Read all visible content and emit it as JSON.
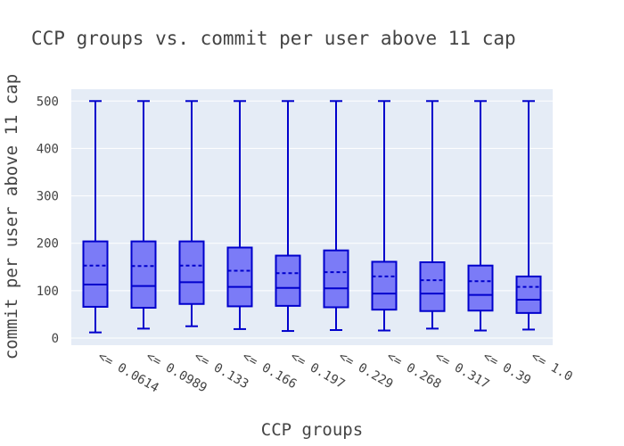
{
  "chart_data": {
    "type": "box",
    "title": "CCP groups vs. commit per user above 11 cap",
    "xlabel": "CCP groups",
    "ylabel": "commit per user above 11 cap",
    "ylim": [
      -15,
      525
    ],
    "yticks": [
      0,
      100,
      200,
      300,
      400,
      500
    ],
    "grid": true,
    "show_mean_line": true,
    "categories": [
      "<= 0.0614",
      "<= 0.0989",
      "<= 0.133",
      "<= 0.166",
      "<= 0.197",
      "<= 0.229",
      "<= 0.268",
      "<= 0.317",
      "<= 0.39",
      "<= 1.0"
    ],
    "boxes": [
      {
        "min": 12,
        "q1": 66,
        "median": 113,
        "q3": 204,
        "max": 500,
        "mean": 153
      },
      {
        "min": 20,
        "q1": 64,
        "median": 110,
        "q3": 204,
        "max": 500,
        "mean": 152
      },
      {
        "min": 25,
        "q1": 72,
        "median": 118,
        "q3": 204,
        "max": 500,
        "mean": 153
      },
      {
        "min": 19,
        "q1": 67,
        "median": 108,
        "q3": 191,
        "max": 500,
        "mean": 142
      },
      {
        "min": 15,
        "q1": 68,
        "median": 106,
        "q3": 174,
        "max": 500,
        "mean": 137
      },
      {
        "min": 17,
        "q1": 65,
        "median": 105,
        "q3": 185,
        "max": 500,
        "mean": 139
      },
      {
        "min": 16,
        "q1": 60,
        "median": 94,
        "q3": 161,
        "max": 500,
        "mean": 130
      },
      {
        "min": 20,
        "q1": 57,
        "median": 94,
        "q3": 160,
        "max": 500,
        "mean": 122
      },
      {
        "min": 16,
        "q1": 58,
        "median": 91,
        "q3": 153,
        "max": 500,
        "mean": 120
      },
      {
        "min": 18,
        "q1": 53,
        "median": 81,
        "q3": 130,
        "max": 500,
        "mean": 108
      }
    ],
    "colors": {
      "box_fill": "#7b7bf7",
      "box_line": "#0000cc",
      "plot_bg": "#e5ecf6",
      "grid": "#ffffff"
    }
  }
}
